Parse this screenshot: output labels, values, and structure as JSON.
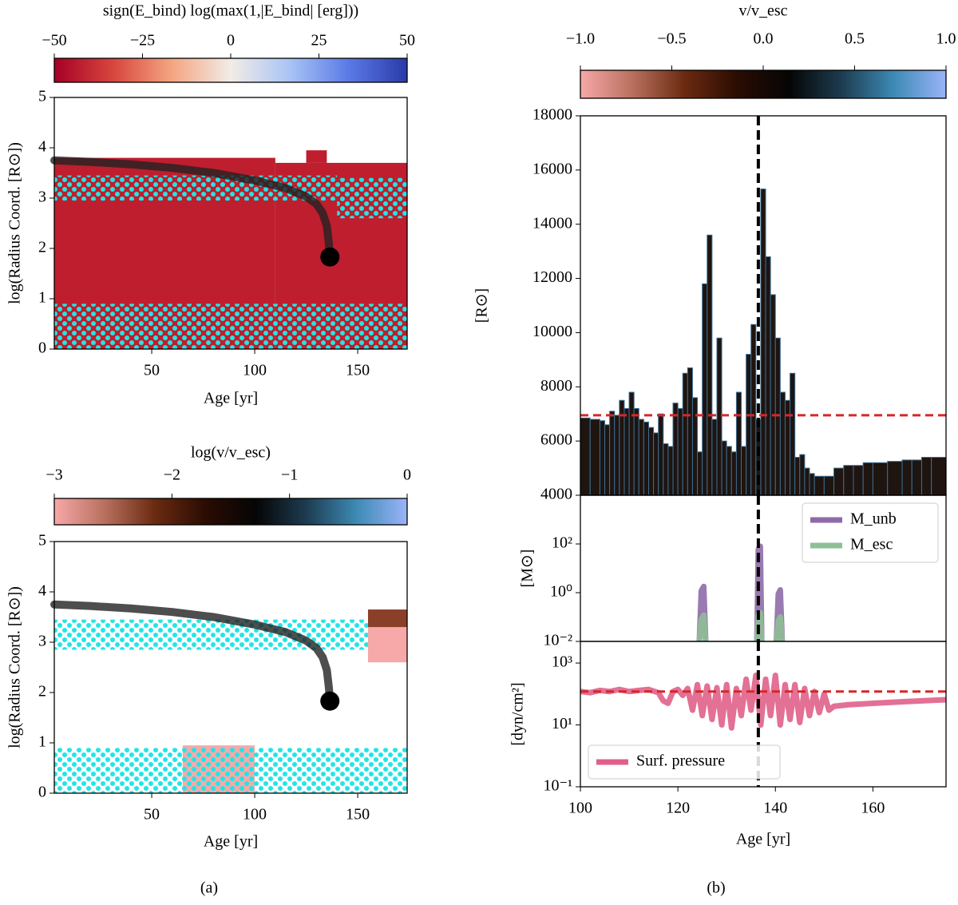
{
  "captions": [
    "(a)",
    "(b)"
  ],
  "chart_data": [
    {
      "type": "colorbar",
      "title": "sign(E_bind) log(max(1,|E_bind| [erg]))",
      "lim": [
        -50,
        50
      ],
      "ticks": [
        {
          "value": -50,
          "label": "−50"
        },
        {
          "value": -25,
          "label": "−25"
        },
        0,
        25,
        50
      ],
      "colors": [
        "#a50026",
        "#d7463e",
        "#f4a582",
        "#f2ece6",
        "#a9c4f5",
        "#5b7ae6",
        "#2a3aa8"
      ]
    },
    {
      "type": "heatmap",
      "xlabel": "Age [yr]",
      "ylabel": "log(Radius Coord. [R⊙])",
      "xlim": [
        2.7,
        174
      ],
      "ylim": [
        0,
        5
      ],
      "xticks": [
        50,
        100,
        150
      ],
      "yticks": [
        0,
        1,
        2,
        3,
        4,
        5
      ],
      "regions": [
        {
          "x": [
            2.7,
            110
          ],
          "y": [
            0,
            3.8
          ],
          "color": "#be1e2d"
        },
        {
          "x": [
            110,
            174
          ],
          "y": [
            0,
            3.7
          ],
          "color": "#be1e2d"
        },
        {
          "x": [
            125,
            135
          ],
          "y": [
            3.7,
            3.95
          ],
          "color": "#be1e2d"
        }
      ],
      "hatch_color": "#22e5e5",
      "hatch_bands": [
        {
          "x": [
            2.7,
            174
          ],
          "y": [
            0,
            0.9
          ]
        },
        {
          "x": [
            2.7,
            140
          ],
          "y": [
            2.95,
            3.45
          ]
        },
        {
          "x": [
            140,
            174
          ],
          "y": [
            2.6,
            3.4
          ]
        }
      ],
      "track": {
        "color": "#222222",
        "x": [
          2.7,
          20,
          40,
          60,
          80,
          100,
          115,
          125,
          130,
          133,
          135,
          136,
          136.5
        ],
        "y": [
          3.75,
          3.72,
          3.67,
          3.6,
          3.5,
          3.35,
          3.2,
          3.03,
          2.88,
          2.7,
          2.45,
          2.1,
          1.83
        ]
      }
    },
    {
      "type": "colorbar",
      "title": "log(v/v_esc)",
      "lim": [
        -3,
        0
      ],
      "ticks": [
        {
          "value": -3,
          "label": "−3"
        },
        {
          "value": -2,
          "label": "−2"
        },
        {
          "value": -1,
          "label": "−1"
        },
        0
      ],
      "colors": [
        "#f7a8a8",
        "#b8705e",
        "#6a2a10",
        "#2a0c02",
        "#050505",
        "#1d3c50",
        "#3d8ab5",
        "#9ab4f8"
      ]
    },
    {
      "type": "heatmap",
      "xlabel": "Age [yr]",
      "ylabel": "log(Radius Coord. [R⊙])",
      "xlim": [
        2.7,
        174
      ],
      "ylim": [
        0,
        5
      ],
      "xticks": [
        50,
        100,
        150
      ],
      "yticks": [
        0,
        1,
        2,
        3,
        4,
        5
      ],
      "regions": [
        {
          "x": [
            65,
            100
          ],
          "y": [
            0,
            0.95
          ],
          "color": "#f5aaaa"
        },
        {
          "x": [
            155,
            174
          ],
          "y": [
            2.6,
            3.3
          ],
          "color": "#f7a8a8"
        },
        {
          "x": [
            155,
            174
          ],
          "y": [
            3.3,
            3.65
          ],
          "color": "#8a4028"
        }
      ],
      "hatch_color": "#22e5e5",
      "hatch_bands": [
        {
          "x": [
            2.7,
            174
          ],
          "y": [
            0,
            0.9
          ]
        },
        {
          "x": [
            2.7,
            155
          ],
          "y": [
            2.85,
            3.45
          ]
        }
      ],
      "track": {
        "color": "#222222",
        "x": [
          2.7,
          20,
          40,
          60,
          80,
          100,
          115,
          125,
          130,
          133,
          135,
          136,
          136.5
        ],
        "y": [
          3.75,
          3.72,
          3.67,
          3.6,
          3.5,
          3.35,
          3.2,
          3.03,
          2.88,
          2.7,
          2.45,
          2.1,
          1.83
        ]
      }
    },
    {
      "type": "colorbar",
      "title": "v/v_esc",
      "lim": [
        -1,
        1
      ],
      "ticks": [
        {
          "value": -1,
          "label": "−1.0"
        },
        {
          "value": -0.5,
          "label": "−0.5"
        },
        {
          "value": 0,
          "label": "0.0"
        },
        {
          "value": 0.5,
          "label": "0.5"
        },
        {
          "value": 1,
          "label": "1.0"
        }
      ],
      "colors": [
        "#f7a8a8",
        "#b8705e",
        "#6a2a10",
        "#2a0c02",
        "#050505",
        "#1d3c50",
        "#3d8ab5",
        "#9ab4f8"
      ]
    },
    {
      "type": "bar",
      "ylabel": "[R⊙]",
      "xlim": [
        100,
        175
      ],
      "ylim": [
        4000,
        18000
      ],
      "yticks": [
        4000,
        6000,
        8000,
        10000,
        12000,
        14000,
        16000,
        18000
      ],
      "color": "#1e1410",
      "edge_color": "#3b6e92",
      "x": [
        100,
        102,
        104,
        105,
        106,
        107,
        108,
        109,
        110,
        111,
        112,
        113,
        114,
        115,
        116,
        117,
        118,
        119,
        120,
        121,
        122,
        123,
        124,
        125,
        126,
        127,
        128,
        129,
        130,
        131,
        132,
        133,
        134,
        135,
        136,
        137,
        138,
        139,
        140,
        141,
        142,
        143,
        144,
        145,
        146,
        147,
        148,
        150,
        152,
        154,
        156,
        158,
        160,
        163,
        166,
        168,
        170,
        172
      ],
      "values": [
        6850,
        6800,
        6750,
        6600,
        7100,
        6950,
        7500,
        7200,
        7800,
        7200,
        6800,
        6700,
        6500,
        6300,
        7000,
        5900,
        5800,
        7400,
        7200,
        8500,
        8700,
        7600,
        5600,
        11800,
        13600,
        6800,
        9800,
        6000,
        5800,
        5600,
        7800,
        5800,
        9200,
        10300,
        6800,
        15300,
        12800,
        11400,
        9800,
        7800,
        7500,
        8500,
        5400,
        5500,
        5000,
        4800,
        4700,
        4700,
        5000,
        5100,
        5100,
        5200,
        5200,
        5250,
        5300,
        5300,
        5400,
        5400
      ],
      "hline": 6950,
      "hline_color": "#d62728",
      "vline": 136.5
    },
    {
      "type": "line",
      "ylabel": "[M⊙]",
      "log": true,
      "xlim": [
        100,
        175
      ],
      "ylim": [
        0.01,
        10000
      ],
      "yticks": [
        {
          "value": 0.01,
          "label": "10⁻²"
        },
        {
          "value": 1,
          "label": "10⁰"
        },
        {
          "value": 100,
          "label": "10²"
        }
      ],
      "legend": "upper right",
      "vline": 136.5,
      "series": [
        {
          "name": "M_unb",
          "color": "#8e6ba8",
          "x": [
            124.4,
            124.8,
            125.3,
            125.7,
            130,
            136.2,
            136.5,
            136.9,
            137.2,
            139,
            140.2,
            140.6,
            141,
            141.4
          ],
          "values": [
            0.01,
            1.2,
            1.8,
            0.01,
            null,
            0.01,
            60,
            80,
            0.01,
            null,
            0.01,
            0.9,
            1.3,
            0.01
          ]
        },
        {
          "name": "M_esc",
          "color": "#8fbf96",
          "x": [
            124.4,
            124.8,
            125.3,
            125.7,
            130,
            136.2,
            136.5,
            136.9,
            137.2,
            139,
            140.2,
            140.6,
            141,
            141.4
          ],
          "values": [
            0.01,
            0.08,
            0.12,
            0.01,
            null,
            0.01,
            0.12,
            0.15,
            0.01,
            null,
            0.01,
            0.07,
            0.1,
            0.01
          ]
        }
      ]
    },
    {
      "type": "line",
      "ylabel": "[dyn/cm²]",
      "xlabel": "Age [yr]",
      "log": true,
      "xlim": [
        100,
        175
      ],
      "ylim": [
        0.1,
        5000
      ],
      "xticks": [
        100,
        120,
        140,
        160
      ],
      "yticks": [
        {
          "value": 0.1,
          "label": "10⁻¹"
        },
        {
          "value": 10,
          "label": "10¹"
        },
        {
          "value": 1000,
          "label": "10³"
        }
      ],
      "legend": "lower left",
      "vline": 136.5,
      "hline": 120,
      "hline_color": "#d62728",
      "series": [
        {
          "name": "Surf. pressure",
          "color": "#e0608a",
          "x": [
            100,
            102,
            104,
            106,
            108,
            110,
            112,
            114,
            116,
            117,
            118,
            119,
            120,
            121,
            122,
            123,
            124,
            125,
            126,
            127,
            128,
            129,
            130,
            131,
            132,
            133,
            134,
            135,
            136,
            137,
            138,
            139,
            140,
            141,
            142,
            143,
            144,
            145,
            146,
            147,
            148,
            149,
            150,
            151,
            152,
            155,
            160,
            165,
            170,
            175
          ],
          "values": [
            120,
            110,
            130,
            120,
            140,
            120,
            130,
            140,
            110,
            60,
            50,
            120,
            140,
            90,
            150,
            30,
            200,
            20,
            180,
            15,
            160,
            10,
            200,
            8,
            150,
            20,
            300,
            30,
            400,
            10,
            300,
            20,
            400,
            10,
            200,
            15,
            200,
            12,
            150,
            20,
            120,
            25,
            100,
            30,
            40,
            45,
            50,
            55,
            60,
            65
          ]
        }
      ]
    }
  ]
}
